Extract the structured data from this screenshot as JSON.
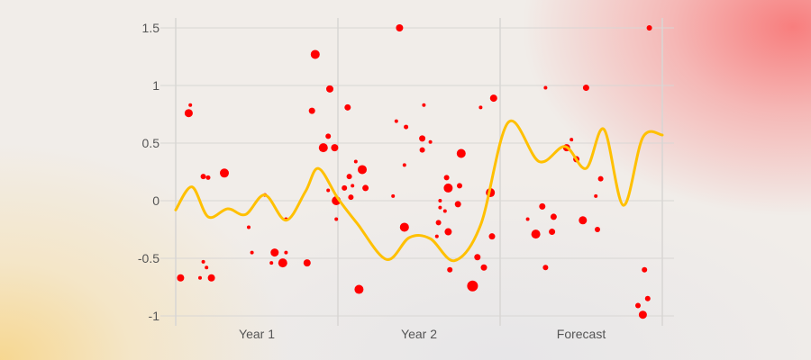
{
  "chart_data": {
    "type": "scatter",
    "title": "",
    "xlabel": "",
    "ylabel": "",
    "categories": [
      "Year 1",
      "Year 2",
      "Forecast"
    ],
    "x_range": [
      0,
      3
    ],
    "ylim": [
      -1,
      1.5
    ],
    "y_ticks": [
      "1.5",
      "1",
      "0.5",
      "0",
      "-0.5",
      "-1"
    ],
    "grid": true,
    "legend": "none",
    "colors": {
      "points": "#ff0000",
      "line": "#ffc000",
      "grid": "#d8d6d4",
      "ticks": "#555555"
    },
    "series": [
      {
        "kind": "scatter",
        "points": [
          {
            "x": 0.03,
            "y": -0.67,
            "s": 4
          },
          {
            "x": 0.08,
            "y": 0.76,
            "s": 4.5
          },
          {
            "x": 0.09,
            "y": 0.83,
            "s": 2
          },
          {
            "x": 0.15,
            "y": -0.67,
            "s": 2
          },
          {
            "x": 0.17,
            "y": 0.21,
            "s": 3
          },
          {
            "x": 0.17,
            "y": -0.53,
            "s": 2
          },
          {
            "x": 0.19,
            "y": -0.58,
            "s": 2
          },
          {
            "x": 0.2,
            "y": 0.2,
            "s": 2.5
          },
          {
            "x": 0.22,
            "y": -0.67,
            "s": 4
          },
          {
            "x": 0.3,
            "y": 0.24,
            "s": 5
          },
          {
            "x": 0.45,
            "y": -0.23,
            "s": 2
          },
          {
            "x": 0.47,
            "y": -0.45,
            "s": 2
          },
          {
            "x": 0.55,
            "y": 0.05,
            "s": 2
          },
          {
            "x": 0.59,
            "y": -0.54,
            "s": 2
          },
          {
            "x": 0.61,
            "y": -0.45,
            "s": 4.5
          },
          {
            "x": 0.66,
            "y": -0.54,
            "s": 5
          },
          {
            "x": 0.68,
            "y": -0.16,
            "s": 2
          },
          {
            "x": 0.68,
            "y": -0.45,
            "s": 2
          },
          {
            "x": 0.81,
            "y": -0.54,
            "s": 4
          },
          {
            "x": 0.84,
            "y": 0.78,
            "s": 3.5
          },
          {
            "x": 0.86,
            "y": 1.27,
            "s": 5
          },
          {
            "x": 0.91,
            "y": 0.46,
            "s": 5
          },
          {
            "x": 0.94,
            "y": 0.56,
            "s": 3
          },
          {
            "x": 0.95,
            "y": 0.97,
            "s": 4
          },
          {
            "x": 0.94,
            "y": 0.09,
            "s": 2
          },
          {
            "x": 0.98,
            "y": 0.46,
            "s": 4
          },
          {
            "x": 0.99,
            "y": 0.0,
            "s": 5
          },
          {
            "x": 0.99,
            "y": -0.16,
            "s": 2
          },
          {
            "x": 1.04,
            "y": 0.11,
            "s": 3
          },
          {
            "x": 1.06,
            "y": 0.81,
            "s": 3.5
          },
          {
            "x": 1.07,
            "y": 0.21,
            "s": 3
          },
          {
            "x": 1.08,
            "y": 0.03,
            "s": 3
          },
          {
            "x": 1.09,
            "y": 0.13,
            "s": 2
          },
          {
            "x": 1.11,
            "y": 0.34,
            "s": 2
          },
          {
            "x": 1.13,
            "y": -0.77,
            "s": 5
          },
          {
            "x": 1.15,
            "y": 0.27,
            "s": 5
          },
          {
            "x": 1.17,
            "y": 0.11,
            "s": 3.5
          },
          {
            "x": 1.34,
            "y": 0.04,
            "s": 2
          },
          {
            "x": 1.36,
            "y": 0.69,
            "s": 2
          },
          {
            "x": 1.38,
            "y": 1.5,
            "s": 4
          },
          {
            "x": 1.41,
            "y": 0.31,
            "s": 2
          },
          {
            "x": 1.42,
            "y": 0.64,
            "s": 2.5
          },
          {
            "x": 1.41,
            "y": -0.23,
            "s": 5
          },
          {
            "x": 1.52,
            "y": 0.54,
            "s": 3.5
          },
          {
            "x": 1.53,
            "y": 0.83,
            "s": 2
          },
          {
            "x": 1.52,
            "y": 0.44,
            "s": 3
          },
          {
            "x": 1.57,
            "y": 0.51,
            "s": 2
          },
          {
            "x": 1.61,
            "y": -0.31,
            "s": 2
          },
          {
            "x": 1.62,
            "y": -0.19,
            "s": 3
          },
          {
            "x": 1.63,
            "y": 0.0,
            "s": 2
          },
          {
            "x": 1.63,
            "y": -0.06,
            "s": 2
          },
          {
            "x": 1.66,
            "y": -0.09,
            "s": 2
          },
          {
            "x": 1.67,
            "y": 0.2,
            "s": 3
          },
          {
            "x": 1.68,
            "y": 0.11,
            "s": 5
          },
          {
            "x": 1.68,
            "y": -0.27,
            "s": 4
          },
          {
            "x": 1.69,
            "y": -0.6,
            "s": 3
          },
          {
            "x": 1.74,
            "y": -0.03,
            "s": 3.5
          },
          {
            "x": 1.75,
            "y": 0.13,
            "s": 3
          },
          {
            "x": 1.76,
            "y": 0.41,
            "s": 5
          },
          {
            "x": 1.83,
            "y": -0.74,
            "s": 6
          },
          {
            "x": 1.86,
            "y": -0.49,
            "s": 3.5
          },
          {
            "x": 1.88,
            "y": 0.81,
            "s": 2
          },
          {
            "x": 1.9,
            "y": -0.58,
            "s": 3.5
          },
          {
            "x": 1.94,
            "y": 0.07,
            "s": 5
          },
          {
            "x": 1.95,
            "y": -0.31,
            "s": 3.5
          },
          {
            "x": 1.96,
            "y": 0.89,
            "s": 4
          },
          {
            "x": 2.17,
            "y": -0.16,
            "s": 2
          },
          {
            "x": 2.22,
            "y": -0.29,
            "s": 5
          },
          {
            "x": 2.26,
            "y": -0.05,
            "s": 3.5
          },
          {
            "x": 2.28,
            "y": 0.98,
            "s": 2
          },
          {
            "x": 2.28,
            "y": -0.58,
            "s": 3
          },
          {
            "x": 2.32,
            "y": -0.27,
            "s": 3.5
          },
          {
            "x": 2.33,
            "y": -0.14,
            "s": 3.5
          },
          {
            "x": 2.41,
            "y": 0.46,
            "s": 4
          },
          {
            "x": 2.44,
            "y": 0.53,
            "s": 2
          },
          {
            "x": 2.47,
            "y": 0.36,
            "s": 3.5
          },
          {
            "x": 2.53,
            "y": 0.98,
            "s": 3.5
          },
          {
            "x": 2.51,
            "y": -0.17,
            "s": 4.5
          },
          {
            "x": 2.59,
            "y": 0.04,
            "s": 2
          },
          {
            "x": 2.6,
            "y": -0.25,
            "s": 3
          },
          {
            "x": 2.62,
            "y": 0.19,
            "s": 3
          },
          {
            "x": 2.85,
            "y": -0.91,
            "s": 3
          },
          {
            "x": 2.88,
            "y": -0.99,
            "s": 4.5
          },
          {
            "x": 2.89,
            "y": -0.6,
            "s": 3
          },
          {
            "x": 2.91,
            "y": -0.85,
            "s": 3
          },
          {
            "x": 2.92,
            "y": 1.5,
            "s": 3
          }
        ]
      },
      {
        "kind": "line",
        "points": [
          {
            "x": 0.0,
            "y": -0.08
          },
          {
            "x": 0.1,
            "y": 0.12
          },
          {
            "x": 0.2,
            "y": -0.14
          },
          {
            "x": 0.32,
            "y": -0.07
          },
          {
            "x": 0.43,
            "y": -0.12
          },
          {
            "x": 0.55,
            "y": 0.05
          },
          {
            "x": 0.68,
            "y": -0.17
          },
          {
            "x": 0.8,
            "y": 0.08
          },
          {
            "x": 0.88,
            "y": 0.28
          },
          {
            "x": 1.0,
            "y": 0.02
          },
          {
            "x": 1.12,
            "y": -0.2
          },
          {
            "x": 1.3,
            "y": -0.51
          },
          {
            "x": 1.44,
            "y": -0.32
          },
          {
            "x": 1.57,
            "y": -0.33
          },
          {
            "x": 1.72,
            "y": -0.52
          },
          {
            "x": 1.88,
            "y": -0.21
          },
          {
            "x": 2.05,
            "y": 0.68
          },
          {
            "x": 2.24,
            "y": 0.34
          },
          {
            "x": 2.4,
            "y": 0.47
          },
          {
            "x": 2.53,
            "y": 0.28
          },
          {
            "x": 2.64,
            "y": 0.62
          },
          {
            "x": 2.76,
            "y": -0.04
          },
          {
            "x": 2.88,
            "y": 0.55
          },
          {
            "x": 3.0,
            "y": 0.57
          }
        ]
      }
    ]
  }
}
